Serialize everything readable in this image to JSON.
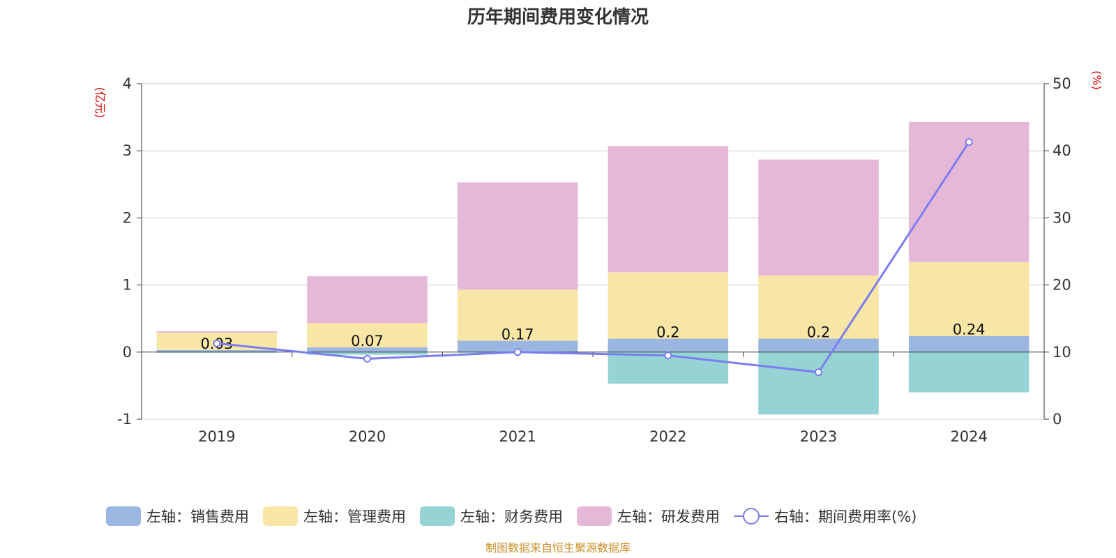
{
  "chart_data": {
    "type": "bar+line",
    "title": "历年期间费用变化情况",
    "categories": [
      "2019",
      "2020",
      "2021",
      "2022",
      "2023",
      "2024"
    ],
    "left_axis": {
      "unit": "(亿元)",
      "range": [
        -1,
        4
      ],
      "ticks": [
        "-1",
        "0",
        "1",
        "2",
        "3",
        "4"
      ],
      "tick_values": [
        -1,
        0,
        1,
        2,
        3,
        4
      ]
    },
    "right_axis": {
      "unit": "(%)",
      "range": [
        0,
        50
      ],
      "ticks": [
        "0",
        "10",
        "20",
        "30",
        "40",
        "50"
      ],
      "tick_values": [
        0,
        10,
        20,
        30,
        40,
        50
      ]
    },
    "series": [
      {
        "name": "销售费用",
        "legend": "左轴：销售费用",
        "axis": "left",
        "type": "bar",
        "color": "#9bb6e0",
        "values": [
          0.03,
          0.07,
          0.17,
          0.2,
          0.2,
          0.24
        ],
        "labels": [
          "0.03",
          "0.07",
          "0.17",
          "0.2",
          "0.2",
          "0.24"
        ]
      },
      {
        "name": "管理费用",
        "legend": "左轴：管理费用",
        "axis": "left",
        "type": "bar",
        "color": "#f7e6a6",
        "values": [
          0.26,
          0.36,
          0.76,
          0.99,
          0.94,
          1.1
        ]
      },
      {
        "name": "财务费用",
        "legend": "左轴：财务费用",
        "axis": "left",
        "type": "bar",
        "color": "#96d3d4",
        "values": [
          -0.01,
          -0.04,
          -0.01,
          -0.47,
          -0.93,
          -0.6
        ]
      },
      {
        "name": "研发费用",
        "legend": "左轴：研发费用",
        "axis": "left",
        "type": "bar",
        "color": "#e6b8d8",
        "values": [
          0.02,
          0.7,
          1.6,
          1.88,
          1.73,
          2.09
        ]
      },
      {
        "name": "期间费用率",
        "legend": "右轴：期间费用率(%)",
        "axis": "right",
        "type": "line",
        "color": "#7b7df0",
        "values": [
          11.3,
          9.0,
          10.0,
          9.5,
          7.0,
          41.3
        ]
      }
    ],
    "source": "制图数据来自恒生聚源数据库"
  }
}
